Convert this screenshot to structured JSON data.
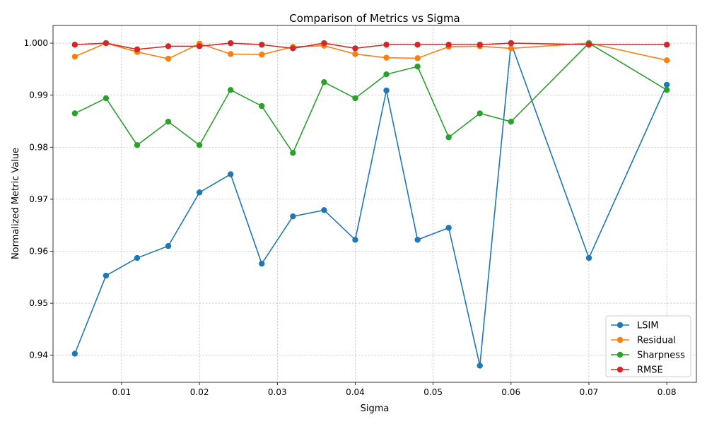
{
  "chart_data": {
    "type": "line",
    "title": "Comparison of Metrics vs Sigma",
    "xlabel": "Sigma",
    "ylabel": "Normalized Metric Value",
    "xlim": [
      0.0012,
      0.0838
    ],
    "ylim": [
      0.9348,
      1.0034
    ],
    "xticks": [
      0.01,
      0.02,
      0.03,
      0.04,
      0.05,
      0.06,
      0.07,
      0.08
    ],
    "xtick_labels": [
      "0.01",
      "0.02",
      "0.03",
      "0.04",
      "0.05",
      "0.06",
      "0.07",
      "0.08"
    ],
    "yticks": [
      0.94,
      0.95,
      0.96,
      0.97,
      0.98,
      0.99,
      1.0
    ],
    "ytick_labels": [
      "0.94",
      "0.95",
      "0.96",
      "0.97",
      "0.98",
      "0.99",
      "1.000"
    ],
    "grid": true,
    "legend_position": "lower-right",
    "x": [
      0.004,
      0.008,
      0.012,
      0.016,
      0.02,
      0.024,
      0.028,
      0.032,
      0.036,
      0.04,
      0.044,
      0.048,
      0.052,
      0.056,
      0.06,
      0.07,
      0.08
    ],
    "series": [
      {
        "name": "LSIM",
        "color": "#1f77b4",
        "values": [
          0.9403,
          0.9553,
          0.9587,
          0.961,
          0.9713,
          0.9748,
          0.9576,
          0.9667,
          0.9679,
          0.9622,
          0.9909,
          0.9622,
          0.9645,
          0.938,
          1.0,
          0.9587,
          0.992
        ]
      },
      {
        "name": "Residual",
        "color": "#ff7f0e",
        "values": [
          0.9974,
          1.0,
          0.9983,
          0.997,
          0.9999,
          0.9979,
          0.9978,
          0.9993,
          0.9995,
          0.9979,
          0.9972,
          0.9971,
          0.9993,
          0.9994,
          0.999,
          1.0,
          0.9967
        ]
      },
      {
        "name": "Sharpness",
        "color": "#2ca02c",
        "values": [
          0.9865,
          0.9894,
          0.9804,
          0.9849,
          0.9804,
          0.991,
          0.9879,
          0.9789,
          0.9925,
          0.9894,
          0.994,
          0.9955,
          0.9819,
          0.9865,
          0.9849,
          1.0,
          0.991
        ]
      },
      {
        "name": "RMSE",
        "color": "#d62728",
        "values": [
          0.9997,
          1.0,
          0.9988,
          0.9994,
          0.9994,
          1.0,
          0.9997,
          0.999,
          1.0,
          0.999,
          0.9997,
          0.9997,
          0.9997,
          0.9997,
          1.0,
          0.9997,
          0.9997
        ]
      }
    ]
  }
}
